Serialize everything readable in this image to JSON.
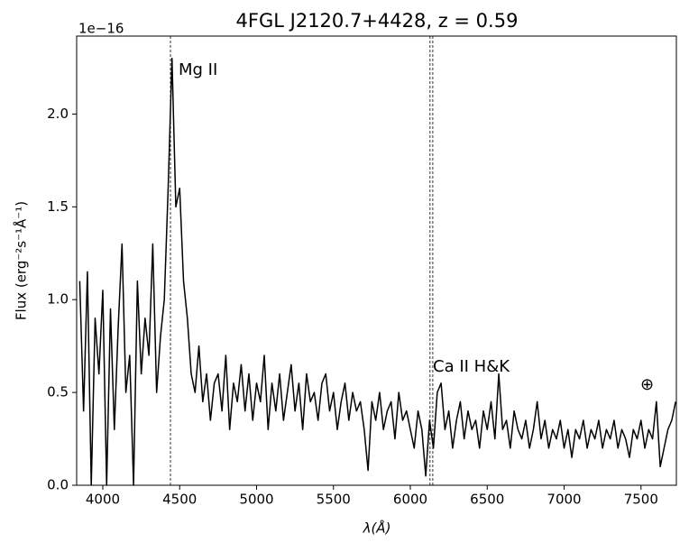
{
  "chart_data": {
    "type": "line",
    "title": "4FGL J2120.7+4428, z = 0.59",
    "x_label": "λ(Å)",
    "y_label": "Flux (erg⁻²s⁻¹Å⁻¹)",
    "y_offset_label": "1e−16",
    "xlim": [
      3830,
      7730
    ],
    "ylim": [
      0,
      2.42
    ],
    "xticks": [
      4000,
      4500,
      5000,
      5500,
      6000,
      6500,
      7000,
      7500
    ],
    "yticks": [
      {
        "value": 0,
        "label": "0.0"
      },
      0.5,
      {
        "value": 1,
        "label": "1.0"
      },
      1.5,
      {
        "value": 2,
        "label": "2.0"
      }
    ],
    "vlines": [
      4440,
      6128,
      6146
    ],
    "annotations": [
      "Mg II",
      "Ca II H&K",
      "⊕"
    ],
    "x": [
      3850,
      3875,
      3900,
      3925,
      3950,
      3975,
      4000,
      4025,
      4050,
      4075,
      4100,
      4125,
      4150,
      4175,
      4200,
      4225,
      4250,
      4275,
      4300,
      4325,
      4350,
      4375,
      4400,
      4425,
      4450,
      4475,
      4500,
      4525,
      4550,
      4575,
      4600,
      4625,
      4650,
      4675,
      4700,
      4725,
      4750,
      4775,
      4800,
      4825,
      4850,
      4875,
      4900,
      4925,
      4950,
      4975,
      5000,
      5025,
      5050,
      5075,
      5100,
      5125,
      5150,
      5175,
      5200,
      5225,
      5250,
      5275,
      5300,
      5325,
      5350,
      5375,
      5400,
      5425,
      5450,
      5475,
      5500,
      5525,
      5550,
      5575,
      5600,
      5625,
      5650,
      5675,
      5700,
      5725,
      5750,
      5775,
      5800,
      5825,
      5850,
      5875,
      5900,
      5925,
      5950,
      5975,
      6000,
      6025,
      6050,
      6075,
      6100,
      6125,
      6150,
      6175,
      6200,
      6225,
      6250,
      6275,
      6300,
      6325,
      6350,
      6375,
      6400,
      6425,
      6450,
      6475,
      6500,
      6525,
      6550,
      6575,
      6600,
      6625,
      6650,
      6675,
      6700,
      6725,
      6750,
      6775,
      6800,
      6825,
      6850,
      6875,
      6900,
      6925,
      6950,
      6975,
      7000,
      7025,
      7050,
      7075,
      7100,
      7125,
      7150,
      7175,
      7200,
      7225,
      7250,
      7275,
      7300,
      7325,
      7350,
      7375,
      7400,
      7425,
      7450,
      7475,
      7500,
      7525,
      7550,
      7575,
      7600,
      7625,
      7650,
      7675,
      7700,
      7725
    ],
    "series": [
      {
        "name": "flux",
        "color": "#000000",
        "values": [
          1.1,
          0.4,
          1.15,
          0.0,
          0.9,
          0.6,
          1.05,
          0.0,
          0.95,
          0.3,
          0.85,
          1.3,
          0.5,
          0.7,
          0.0,
          1.1,
          0.6,
          0.9,
          0.7,
          1.3,
          0.5,
          0.8,
          1.0,
          1.6,
          2.3,
          1.5,
          1.6,
          1.1,
          0.9,
          0.6,
          0.5,
          0.75,
          0.45,
          0.6,
          0.35,
          0.55,
          0.6,
          0.4,
          0.7,
          0.3,
          0.55,
          0.45,
          0.65,
          0.4,
          0.6,
          0.35,
          0.55,
          0.45,
          0.7,
          0.3,
          0.55,
          0.4,
          0.6,
          0.35,
          0.5,
          0.65,
          0.4,
          0.55,
          0.3,
          0.6,
          0.45,
          0.5,
          0.35,
          0.55,
          0.6,
          0.4,
          0.5,
          0.3,
          0.45,
          0.55,
          0.35,
          0.5,
          0.4,
          0.45,
          0.3,
          0.08,
          0.45,
          0.35,
          0.5,
          0.3,
          0.4,
          0.45,
          0.25,
          0.5,
          0.35,
          0.4,
          0.3,
          0.2,
          0.4,
          0.3,
          0.05,
          0.35,
          0.2,
          0.5,
          0.55,
          0.3,
          0.4,
          0.2,
          0.35,
          0.45,
          0.25,
          0.4,
          0.3,
          0.35,
          0.2,
          0.4,
          0.3,
          0.45,
          0.25,
          0.6,
          0.3,
          0.35,
          0.2,
          0.4,
          0.3,
          0.25,
          0.35,
          0.2,
          0.3,
          0.45,
          0.25,
          0.35,
          0.2,
          0.3,
          0.25,
          0.35,
          0.2,
          0.3,
          0.15,
          0.3,
          0.25,
          0.35,
          0.2,
          0.3,
          0.25,
          0.35,
          0.2,
          0.3,
          0.25,
          0.35,
          0.2,
          0.3,
          0.25,
          0.15,
          0.3,
          0.25,
          0.35,
          0.2,
          0.3,
          0.25,
          0.45,
          0.1,
          0.2,
          0.3,
          0.35,
          0.45
        ]
      }
    ]
  }
}
